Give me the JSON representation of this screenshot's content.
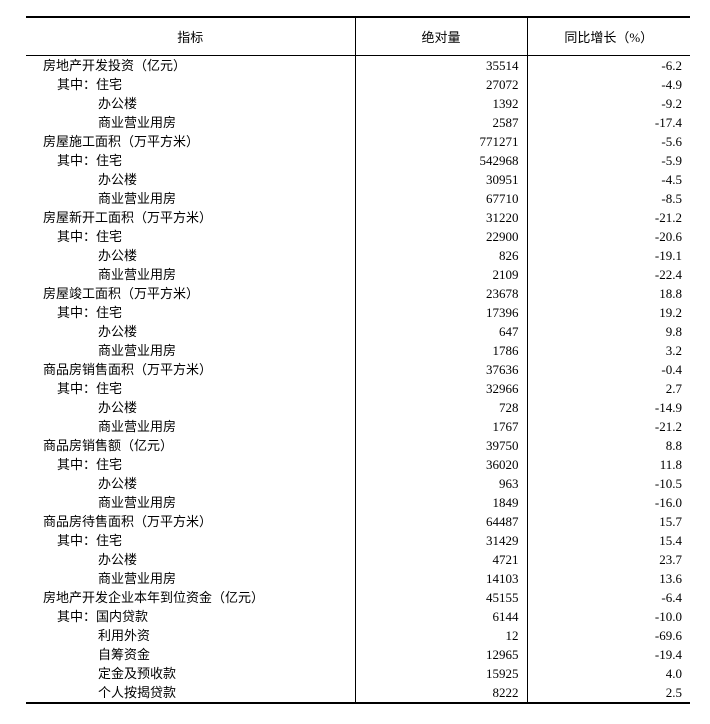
{
  "headers": [
    "指标",
    "绝对量",
    "同比增长（%）"
  ],
  "rows": [
    {
      "label": "房地产开发投资（亿元）",
      "level": 0,
      "value": "35514",
      "growth": "-6.2"
    },
    {
      "label": "其中：住宅",
      "level": 1,
      "value": "27072",
      "growth": "-4.9"
    },
    {
      "label": "办公楼",
      "level": 2,
      "value": "1392",
      "growth": "-9.2"
    },
    {
      "label": "商业营业用房",
      "level": 2,
      "value": "2587",
      "growth": "-17.4"
    },
    {
      "label": "房屋施工面积（万平方米）",
      "level": 0,
      "value": "771271",
      "growth": "-5.6"
    },
    {
      "label": "其中：住宅",
      "level": 1,
      "value": "542968",
      "growth": "-5.9"
    },
    {
      "label": "办公楼",
      "level": 2,
      "value": "30951",
      "growth": "-4.5"
    },
    {
      "label": "商业营业用房",
      "level": 2,
      "value": "67710",
      "growth": "-8.5"
    },
    {
      "label": "房屋新开工面积（万平方米）",
      "level": 0,
      "value": "31220",
      "growth": "-21.2"
    },
    {
      "label": "其中：住宅",
      "level": 1,
      "value": "22900",
      "growth": "-20.6"
    },
    {
      "label": "办公楼",
      "level": 2,
      "value": "826",
      "growth": "-19.1"
    },
    {
      "label": "商业营业用房",
      "level": 2,
      "value": "2109",
      "growth": "-22.4"
    },
    {
      "label": "房屋竣工面积（万平方米）",
      "level": 0,
      "value": "23678",
      "growth": "18.8"
    },
    {
      "label": "其中：住宅",
      "level": 1,
      "value": "17396",
      "growth": "19.2"
    },
    {
      "label": "办公楼",
      "level": 2,
      "value": "647",
      "growth": "9.8"
    },
    {
      "label": "商业营业用房",
      "level": 2,
      "value": "1786",
      "growth": "3.2"
    },
    {
      "label": "商品房销售面积（万平方米）",
      "level": 0,
      "value": "37636",
      "growth": "-0.4"
    },
    {
      "label": "其中：住宅",
      "level": 1,
      "value": "32966",
      "growth": "2.7"
    },
    {
      "label": "办公楼",
      "level": 2,
      "value": "728",
      "growth": "-14.9"
    },
    {
      "label": "商业营业用房",
      "level": 2,
      "value": "1767",
      "growth": "-21.2"
    },
    {
      "label": "商品房销售额（亿元）",
      "level": 0,
      "value": "39750",
      "growth": "8.8"
    },
    {
      "label": "其中：住宅",
      "level": 1,
      "value": "36020",
      "growth": "11.8"
    },
    {
      "label": "办公楼",
      "level": 2,
      "value": "963",
      "growth": "-10.5"
    },
    {
      "label": "商业营业用房",
      "level": 2,
      "value": "1849",
      "growth": "-16.0"
    },
    {
      "label": "商品房待售面积（万平方米）",
      "level": 0,
      "value": "64487",
      "growth": "15.7"
    },
    {
      "label": "其中：住宅",
      "level": 1,
      "value": "31429",
      "growth": "15.4"
    },
    {
      "label": "办公楼",
      "level": 2,
      "value": "4721",
      "growth": "23.7"
    },
    {
      "label": "商业营业用房",
      "level": 2,
      "value": "14103",
      "growth": "13.6"
    },
    {
      "label": "房地产开发企业本年到位资金（亿元）",
      "level": 0,
      "value": "45155",
      "growth": "-6.4"
    },
    {
      "label": "其中：国内贷款",
      "level": 1,
      "value": "6144",
      "growth": "-10.0"
    },
    {
      "label": "利用外资",
      "level": 2,
      "value": "12",
      "growth": "-69.6"
    },
    {
      "label": "自筹资金",
      "level": 2,
      "value": "12965",
      "growth": "-19.4"
    },
    {
      "label": "定金及预收款",
      "level": 2,
      "value": "15925",
      "growth": "4.0"
    },
    {
      "label": "个人按揭贷款",
      "level": 2,
      "value": "8222",
      "growth": "2.5"
    }
  ]
}
